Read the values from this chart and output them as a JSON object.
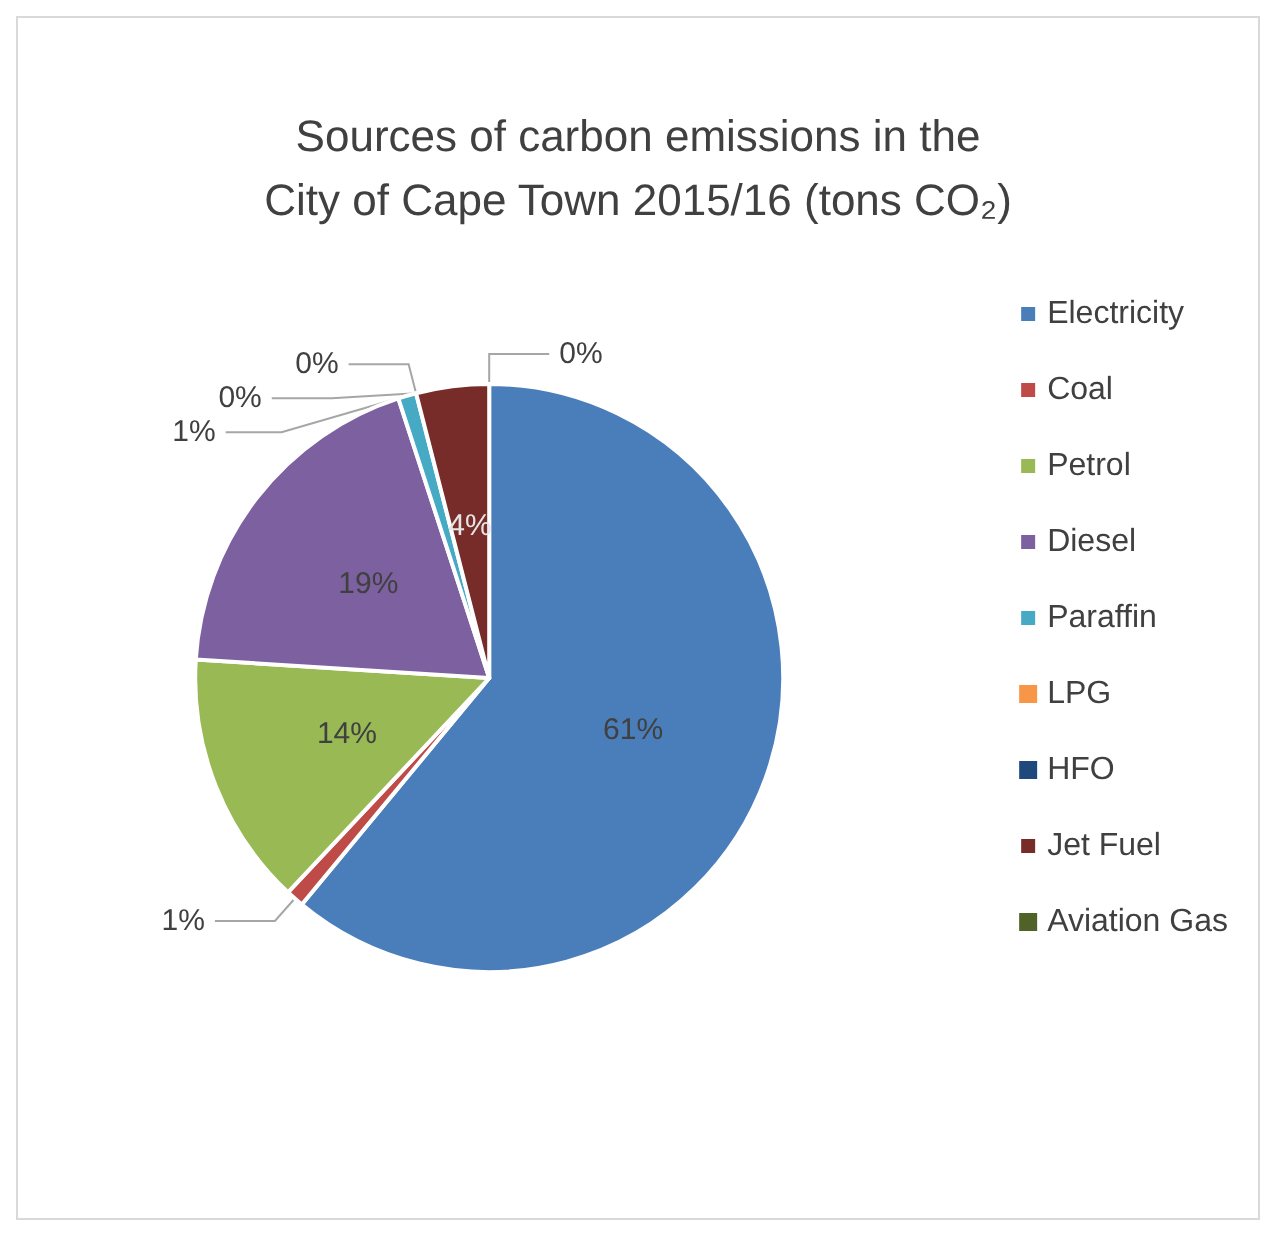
{
  "chart_data": {
    "type": "pie",
    "title": "Sources of carbon emissions in the\nCity of Cape Town 2015/16 (tons CO₂)",
    "categories": [
      "Electricity",
      "Coal",
      "Petrol",
      "Diesel",
      "Paraffin",
      "LPG",
      "HFO",
      "Jet Fuel",
      "Aviation Gas"
    ],
    "values": [
      61,
      1,
      14,
      19,
      1,
      0,
      0,
      4,
      0
    ],
    "colors": [
      "#4a7ebb",
      "#be4b48",
      "#98b954",
      "#7d60a0",
      "#46aac4",
      "#f79646",
      "#1f497d",
      "#772c2a",
      "#4f6228"
    ],
    "value_labels": [
      "61%",
      "1%",
      "14%",
      "19%",
      "1%",
      "0%",
      "0%",
      "4%",
      "0%"
    ],
    "legend": "right"
  }
}
